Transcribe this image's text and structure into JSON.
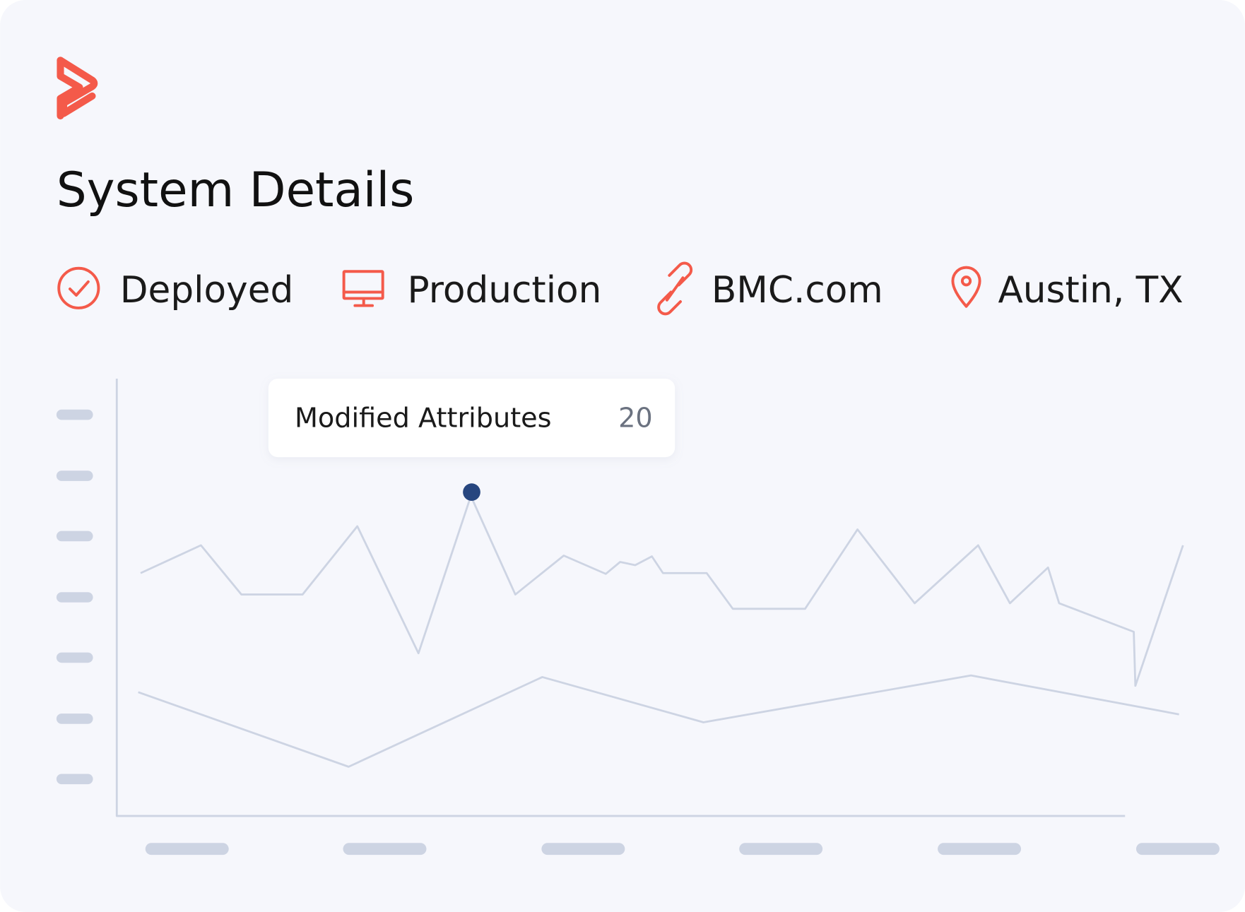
{
  "header": {
    "title": "System Details"
  },
  "status": [
    {
      "label": "Deployed"
    },
    {
      "label": "Production"
    },
    {
      "label": "BMC.com"
    },
    {
      "label": "Austin, TX"
    }
  ],
  "tooltip": {
    "label": "Modified Attributes",
    "value": "20"
  }
}
